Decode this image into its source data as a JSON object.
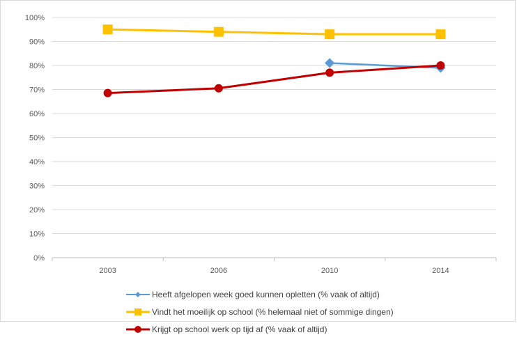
{
  "chart_data": {
    "type": "line",
    "categories": [
      "2003",
      "2006",
      "2010",
      "2014"
    ],
    "ylim": [
      0,
      100
    ],
    "yticks": [
      0,
      10,
      20,
      30,
      40,
      50,
      60,
      70,
      80,
      90,
      100
    ],
    "ytick_labels": [
      "0%",
      "10%",
      "20%",
      "30%",
      "40%",
      "50%",
      "60%",
      "70%",
      "80%",
      "90%",
      "100%"
    ],
    "grid": true,
    "legend_position": "bottom",
    "series": [
      {
        "name": "Heeft afgelopen week goed kunnen opletten (% vaak of altijd)",
        "color": "#5b9bd5",
        "marker": "diamond",
        "values": [
          null,
          null,
          81,
          79
        ]
      },
      {
        "name": "Vindt het moeilijk op school (% helemaal niet of sommige dingen)",
        "color": "#ffc000",
        "marker": "square",
        "values": [
          95,
          94,
          93,
          93
        ]
      },
      {
        "name": "Krijgt op school werk op tijd af (% vaak of altijd)",
        "color": "#c00000",
        "marker": "circle",
        "values": [
          68.5,
          70.5,
          77,
          80
        ]
      }
    ]
  }
}
